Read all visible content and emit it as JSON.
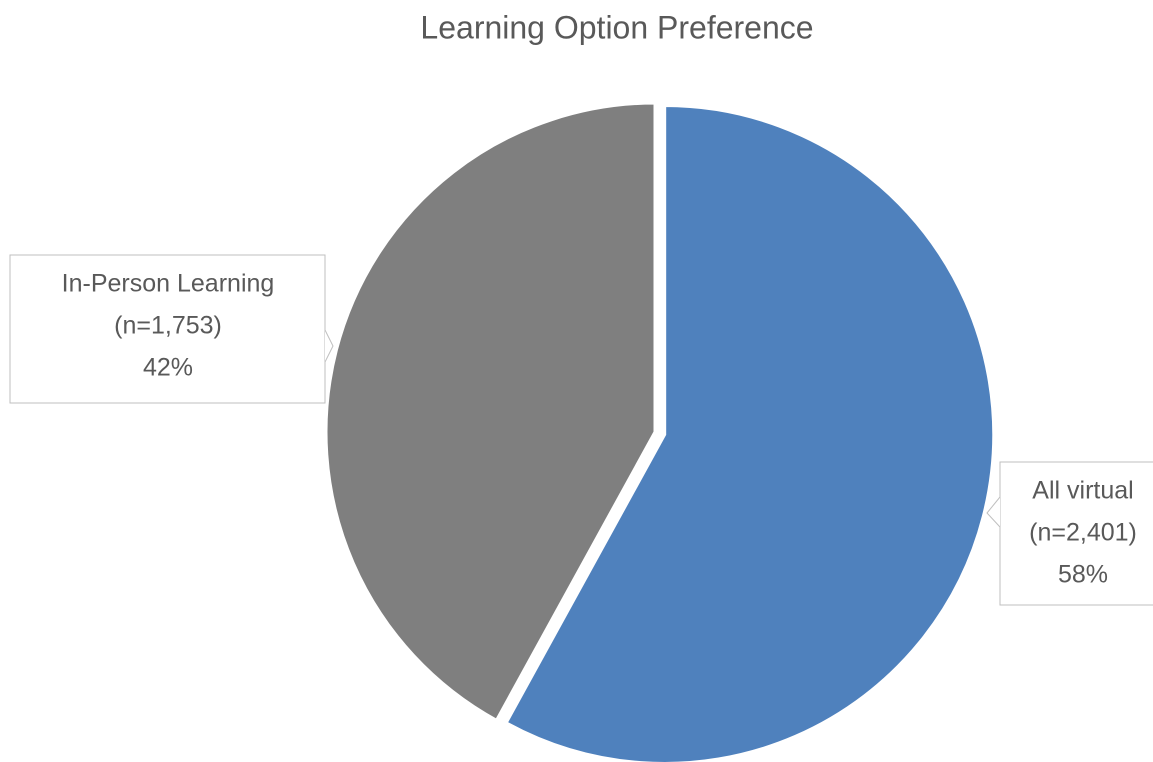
{
  "chart_data": {
    "type": "pie",
    "title": "Learning Option Preference",
    "categories": [
      "All virtual",
      "In-Person Learning"
    ],
    "values": [
      58,
      42
    ],
    "value_labels": [
      "58%",
      "42%"
    ],
    "count_labels": [
      "(n=2,401)",
      "(n=1,753)"
    ],
    "colors": [
      "#4f81bd",
      "#7f7f7f"
    ]
  }
}
